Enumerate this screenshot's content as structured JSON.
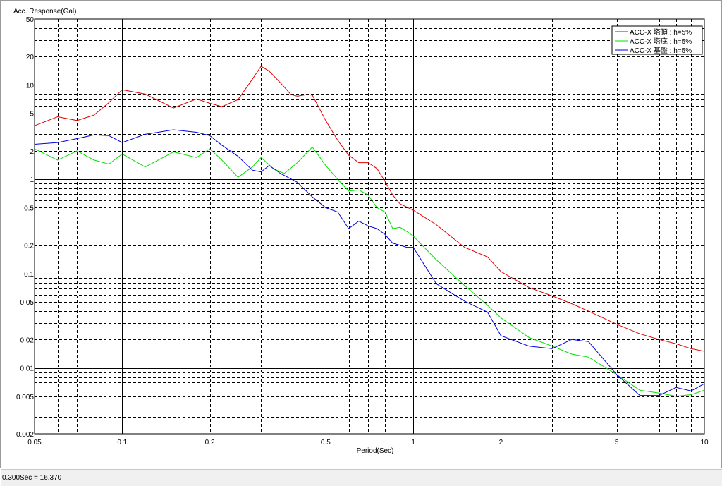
{
  "status_bar": {
    "readout": "0.300Sec = 16.370"
  },
  "chart_data": {
    "type": "line",
    "ylabel": "Acc. Response(Gal)",
    "xlabel": "Period(Sec)",
    "x_scale": "log",
    "y_scale": "log",
    "xlim": [
      0.05,
      10
    ],
    "ylim": [
      0.002,
      50
    ],
    "grid": true,
    "legend_position": "top-right",
    "x_ticks": [
      {
        "v": 0.05,
        "label": "0.05"
      },
      {
        "v": 0.1,
        "label": "0.1"
      },
      {
        "v": 0.2,
        "label": "0.2"
      },
      {
        "v": 0.5,
        "label": "0.5"
      },
      {
        "v": 1,
        "label": "1"
      },
      {
        "v": 2,
        "label": "2"
      },
      {
        "v": 5,
        "label": "5"
      },
      {
        "v": 10,
        "label": "10"
      }
    ],
    "y_ticks": [
      {
        "v": 0.002,
        "label": "0.002"
      },
      {
        "v": 0.005,
        "label": "0.005"
      },
      {
        "v": 0.01,
        "label": "0.01"
      },
      {
        "v": 0.02,
        "label": "0.02"
      },
      {
        "v": 0.05,
        "label": "0.05"
      },
      {
        "v": 0.1,
        "label": "0.1"
      },
      {
        "v": 0.2,
        "label": "0.2"
      },
      {
        "v": 0.5,
        "label": "0.5"
      },
      {
        "v": 1,
        "label": "1"
      },
      {
        "v": 2,
        "label": "2"
      },
      {
        "v": 5,
        "label": "5"
      },
      {
        "v": 10,
        "label": "10"
      },
      {
        "v": 20,
        "label": "20"
      },
      {
        "v": 50,
        "label": "50"
      }
    ],
    "series": [
      {
        "name": "ACC-X 塔頂 : h=5%",
        "color": "#e00000",
        "x": [
          0.05,
          0.06,
          0.07,
          0.08,
          0.09,
          0.1,
          0.12,
          0.15,
          0.18,
          0.2,
          0.22,
          0.25,
          0.28,
          0.3,
          0.32,
          0.35,
          0.38,
          0.4,
          0.43,
          0.45,
          0.5,
          0.55,
          0.6,
          0.65,
          0.7,
          0.75,
          0.8,
          0.85,
          0.9,
          1.0,
          1.2,
          1.5,
          1.8,
          2.0,
          2.5,
          3.0,
          3.5,
          4.0,
          5.0,
          6.0,
          7.0,
          8.0,
          9.0,
          10.0
        ],
        "y": [
          3.7,
          4.6,
          4.2,
          4.8,
          6.5,
          8.9,
          8.0,
          5.7,
          7.1,
          6.4,
          5.9,
          7.0,
          11.5,
          15.8,
          14.0,
          10.5,
          7.9,
          7.6,
          7.9,
          7.8,
          4.2,
          2.6,
          1.8,
          1.5,
          1.5,
          1.3,
          0.95,
          0.68,
          0.55,
          0.47,
          0.33,
          0.19,
          0.15,
          0.105,
          0.071,
          0.058,
          0.048,
          0.04,
          0.029,
          0.023,
          0.02,
          0.018,
          0.016,
          0.015
        ]
      },
      {
        "name": "ACC-X 塔底 : h=5%",
        "color": "#00e000",
        "x": [
          0.05,
          0.06,
          0.07,
          0.08,
          0.09,
          0.1,
          0.12,
          0.15,
          0.18,
          0.2,
          0.22,
          0.25,
          0.28,
          0.3,
          0.33,
          0.36,
          0.4,
          0.45,
          0.5,
          0.55,
          0.6,
          0.65,
          0.7,
          0.75,
          0.8,
          0.85,
          0.9,
          0.95,
          1.0,
          1.2,
          1.5,
          1.8,
          2.0,
          2.5,
          3.0,
          3.5,
          4.0,
          5.0,
          6.0,
          7.0,
          8.0,
          9.0,
          10.0
        ],
        "y": [
          2.1,
          1.6,
          2.0,
          1.6,
          1.45,
          1.85,
          1.35,
          1.95,
          1.7,
          2.1,
          1.6,
          1.05,
          1.35,
          1.7,
          1.3,
          1.15,
          1.5,
          2.2,
          1.4,
          1.0,
          0.75,
          0.77,
          0.68,
          0.5,
          0.45,
          0.3,
          0.31,
          0.28,
          0.25,
          0.14,
          0.075,
          0.046,
          0.034,
          0.021,
          0.017,
          0.014,
          0.013,
          0.0085,
          0.0058,
          0.0054,
          0.005,
          0.0052,
          0.0058
        ]
      },
      {
        "name": "ACC-X 基盤 : h=5%",
        "color": "#0000e0",
        "x": [
          0.05,
          0.06,
          0.07,
          0.08,
          0.09,
          0.1,
          0.12,
          0.15,
          0.18,
          0.2,
          0.22,
          0.25,
          0.28,
          0.3,
          0.32,
          0.35,
          0.4,
          0.45,
          0.5,
          0.55,
          0.6,
          0.65,
          0.7,
          0.75,
          0.8,
          0.85,
          0.9,
          0.95,
          1.0,
          1.2,
          1.5,
          1.8,
          2.0,
          2.5,
          3.0,
          3.5,
          4.0,
          5.0,
          6.0,
          7.0,
          8.0,
          9.0,
          10.0
        ],
        "y": [
          2.35,
          2.45,
          2.7,
          2.95,
          2.9,
          2.45,
          3.0,
          3.35,
          3.15,
          2.9,
          2.3,
          1.75,
          1.25,
          1.2,
          1.4,
          1.15,
          0.93,
          0.65,
          0.5,
          0.45,
          0.3,
          0.36,
          0.32,
          0.3,
          0.26,
          0.21,
          0.2,
          0.19,
          0.19,
          0.078,
          0.051,
          0.039,
          0.022,
          0.017,
          0.016,
          0.02,
          0.019,
          0.0085,
          0.0051,
          0.0051,
          0.0062,
          0.0057,
          0.0068
        ]
      }
    ]
  }
}
